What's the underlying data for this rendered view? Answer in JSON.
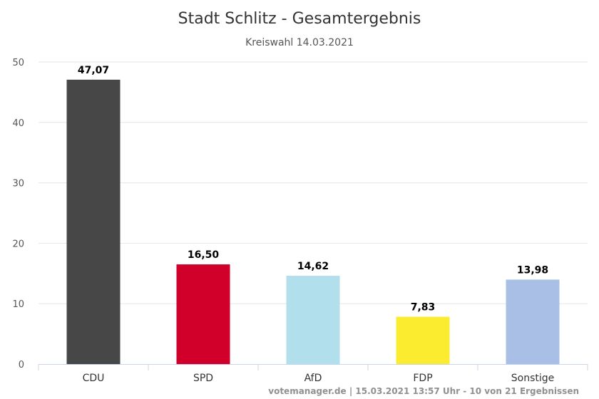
{
  "chart_data": {
    "type": "bar",
    "title": "Stadt Schlitz - Gesamtergebnis",
    "subtitle": "Kreiswahl 14.03.2021",
    "categories": [
      "CDU",
      "SPD",
      "AfD",
      "FDP",
      "Sonstige"
    ],
    "values": [
      47.07,
      16.5,
      14.62,
      7.83,
      13.98
    ],
    "value_labels": [
      "47,07",
      "16,50",
      "14,62",
      "7,83",
      "13,98"
    ],
    "colors": [
      "#474747",
      "#d0002b",
      "#b2dfec",
      "#fbec30",
      "#aabfe5"
    ],
    "ylim": [
      0,
      50
    ],
    "yticks": [
      "0",
      "10",
      "20",
      "30",
      "40",
      "50"
    ],
    "xlabel": "",
    "ylabel": "",
    "grid": true,
    "legend": "none"
  },
  "credits": "votemanager.de | 15.03.2021 13:57 Uhr - 10 von 21 Ergebnissen"
}
